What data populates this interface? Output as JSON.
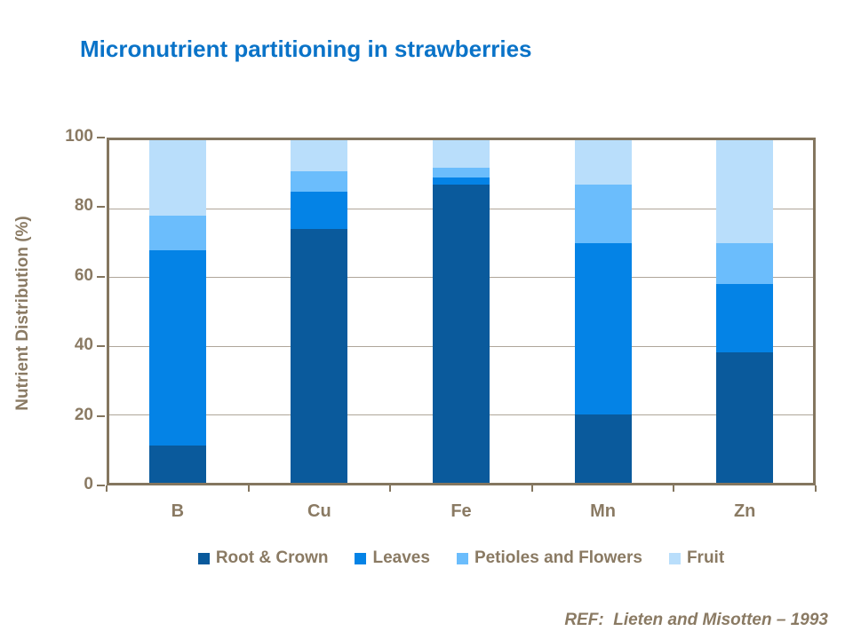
{
  "title": "Micronutrient partitioning in strawberries",
  "ref_note": "REF:  Lieten and Misotten – 1993",
  "colors": {
    "title": "#0A73C8",
    "axis_text": "#8A7A63",
    "frame": "#84765F",
    "gridline": "#AFA69A",
    "background": "#FFFFFF"
  },
  "chart_data": {
    "type": "bar",
    "stacked": true,
    "title": "Micronutrient partitioning in strawberries",
    "xlabel": "",
    "ylabel": "Nutrient Distribution (%)",
    "ylim": [
      0,
      100
    ],
    "yticks": [
      0,
      20,
      40,
      60,
      80,
      100
    ],
    "grid": true,
    "legend_position": "bottom",
    "categories": [
      "B",
      "Cu",
      "Fe",
      "Mn",
      "Zn"
    ],
    "series": [
      {
        "name": "Root & Crown",
        "color": "#0A5A9C",
        "values": [
          11,
          74,
          87,
          20,
          38
        ]
      },
      {
        "name": "Leaves",
        "color": "#0483E6",
        "values": [
          57,
          11,
          2,
          50,
          20
        ]
      },
      {
        "name": "Petioles and Flowers",
        "color": "#6BBDFC",
        "values": [
          10,
          6,
          3,
          17,
          12
        ]
      },
      {
        "name": "Fruit",
        "color": "#B9DEFB",
        "values": [
          22,
          9,
          8,
          13,
          30
        ]
      }
    ]
  }
}
